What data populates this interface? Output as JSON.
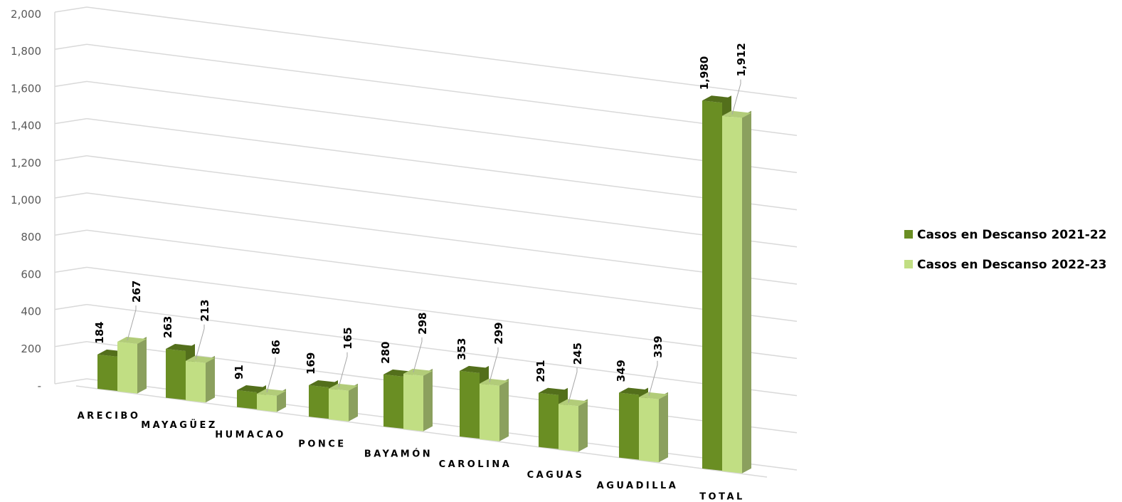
{
  "chart_data": {
    "type": "bar",
    "title": "",
    "xlabel": "",
    "ylabel": "",
    "ylim": [
      0,
      2000
    ],
    "yticks": [
      "-",
      "200",
      "400",
      "600",
      "800",
      "1,000",
      "1,200",
      "1,400",
      "1,600",
      "1,800",
      "2,000"
    ],
    "grid": true,
    "legend_position": "right",
    "categories": [
      "ARECIBO",
      "MAYAGÜEZ",
      "HUMACAO",
      "PONCE",
      "BAYAMÓN",
      "CAROLINA",
      "CAGUAS",
      "AGUADILLA",
      "TOTAL"
    ],
    "series": [
      {
        "name": "Casos en Descanso 2021-22",
        "color": "#6a8e23",
        "values": [
          184,
          263,
          91,
          169,
          280,
          353,
          291,
          349,
          1980
        ],
        "labels": [
          "184",
          "263",
          "91",
          "169",
          "280",
          "353",
          "291",
          "349",
          "1,980"
        ]
      },
      {
        "name": "Casos en Descanso 2022-23",
        "color": "#c1de83",
        "values": [
          267,
          213,
          86,
          165,
          298,
          299,
          245,
          339,
          1912
        ],
        "labels": [
          "267",
          "213",
          "86",
          "165",
          "298",
          "299",
          "245",
          "339",
          "1,912"
        ]
      }
    ]
  }
}
